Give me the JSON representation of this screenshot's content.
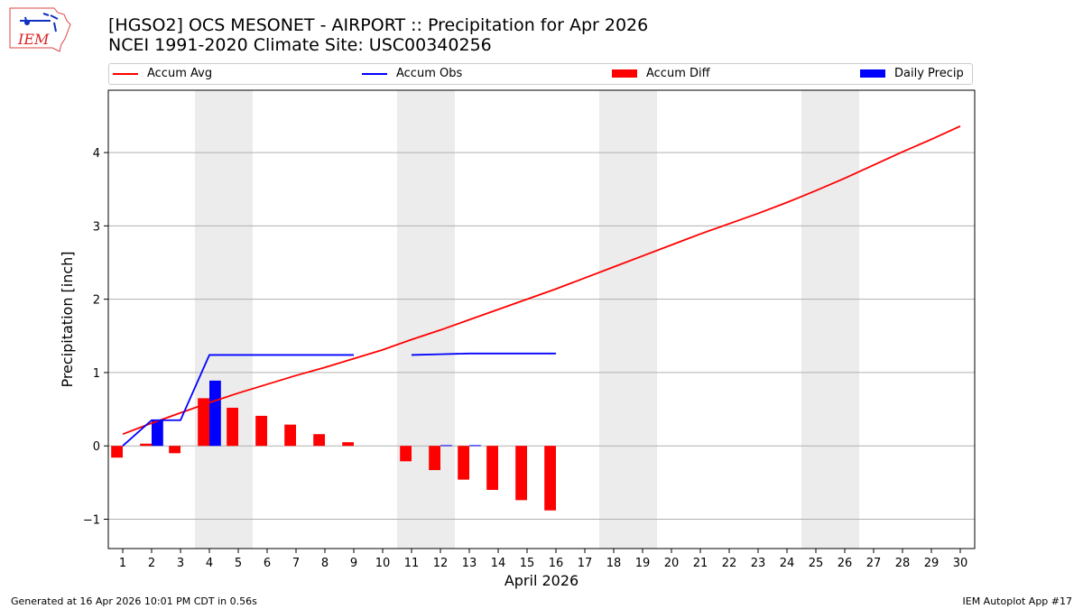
{
  "header": {
    "title_line1": "[HGSO2] OCS MESONET - AIRPORT :: Precipitation for Apr 2026",
    "title_line2": "NCEI 1991-2020 Climate Site: USC00340256",
    "logo_text": "IEM"
  },
  "legend": {
    "accum_avg": "Accum Avg",
    "accum_obs": "Accum Obs",
    "accum_diff": "Accum Diff",
    "daily_precip": "Daily Precip"
  },
  "colors": {
    "accum_avg": "#ff0000",
    "accum_obs": "#0000ff",
    "accum_diff": "#ff0000",
    "daily_precip": "#0000ff",
    "weekend_shade": "#ececec",
    "grid": "#b0b0b0"
  },
  "footer": {
    "generated": "Generated at 16 Apr 2026 10:01 PM CDT in 0.56s",
    "app": "IEM Autoplot App #17"
  },
  "chart_data": {
    "type": "bar",
    "title": "[HGSO2] OCS MESONET - AIRPORT :: Precipitation for Apr 2026",
    "subtitle": "NCEI 1991-2020 Climate Site: USC00340256",
    "xlabel": "April 2026",
    "ylabel": "Precipitation [inch]",
    "xlim": [
      0.5,
      30.5
    ],
    "ylim": [
      -1.4,
      4.85
    ],
    "grid": "horizontal",
    "legend_position": "top",
    "x_ticks": [
      "1",
      "2",
      "3",
      "4",
      "5",
      "6",
      "7",
      "8",
      "9",
      "10",
      "11",
      "12",
      "13",
      "14",
      "15",
      "16",
      "17",
      "18",
      "19",
      "20",
      "21",
      "22",
      "23",
      "24",
      "25",
      "26",
      "27",
      "28",
      "29",
      "30"
    ],
    "y_ticks": [
      -1,
      0,
      1,
      2,
      3,
      4
    ],
    "y_tick_labels": [
      "−1",
      "0",
      "1",
      "2",
      "3",
      "4"
    ],
    "weekend_spans": [
      [
        3.5,
        5.5
      ],
      [
        10.5,
        12.5
      ],
      [
        17.5,
        19.5
      ],
      [
        24.5,
        26.5
      ]
    ],
    "series": [
      {
        "name": "Accum Avg",
        "kind": "line",
        "x": [
          1,
          2,
          3,
          4,
          5,
          6,
          7,
          8,
          9,
          10,
          11,
          12,
          13,
          14,
          15,
          16,
          17,
          18,
          19,
          20,
          21,
          22,
          23,
          24,
          25,
          26,
          27,
          28,
          29,
          30
        ],
        "values": [
          0.16,
          0.31,
          0.45,
          0.59,
          0.72,
          0.84,
          0.96,
          1.07,
          1.19,
          1.31,
          1.45,
          1.58,
          1.72,
          1.86,
          2.0,
          2.14,
          2.29,
          2.44,
          2.59,
          2.74,
          2.89,
          3.03,
          3.17,
          3.32,
          3.48,
          3.65,
          3.83,
          4.01,
          4.18,
          4.36
        ]
      },
      {
        "name": "Accum Obs",
        "kind": "line",
        "segments": [
          {
            "x": [
              1,
              2,
              3,
              4,
              5,
              6,
              7,
              8,
              9
            ],
            "values": [
              0.0,
              0.35,
              0.35,
              1.24,
              1.24,
              1.24,
              1.24,
              1.24,
              1.24
            ]
          },
          {
            "x": [
              11,
              12,
              13,
              14,
              15,
              16
            ],
            "values": [
              1.24,
              1.25,
              1.26,
              1.26,
              1.26,
              1.26
            ]
          }
        ]
      },
      {
        "name": "Accum Diff",
        "kind": "bar",
        "x": [
          1,
          2,
          3,
          4,
          5,
          6,
          7,
          8,
          9,
          11,
          12,
          13,
          14,
          15,
          16
        ],
        "values": [
          -0.16,
          0.03,
          -0.1,
          0.65,
          0.52,
          0.41,
          0.29,
          0.16,
          0.05,
          -0.21,
          -0.33,
          -0.46,
          -0.6,
          -0.74,
          -0.88
        ]
      },
      {
        "name": "Daily Precip",
        "kind": "bar",
        "x": [
          2,
          4,
          12,
          13
        ],
        "values": [
          0.35,
          0.89,
          0.01,
          0.01
        ]
      }
    ]
  }
}
